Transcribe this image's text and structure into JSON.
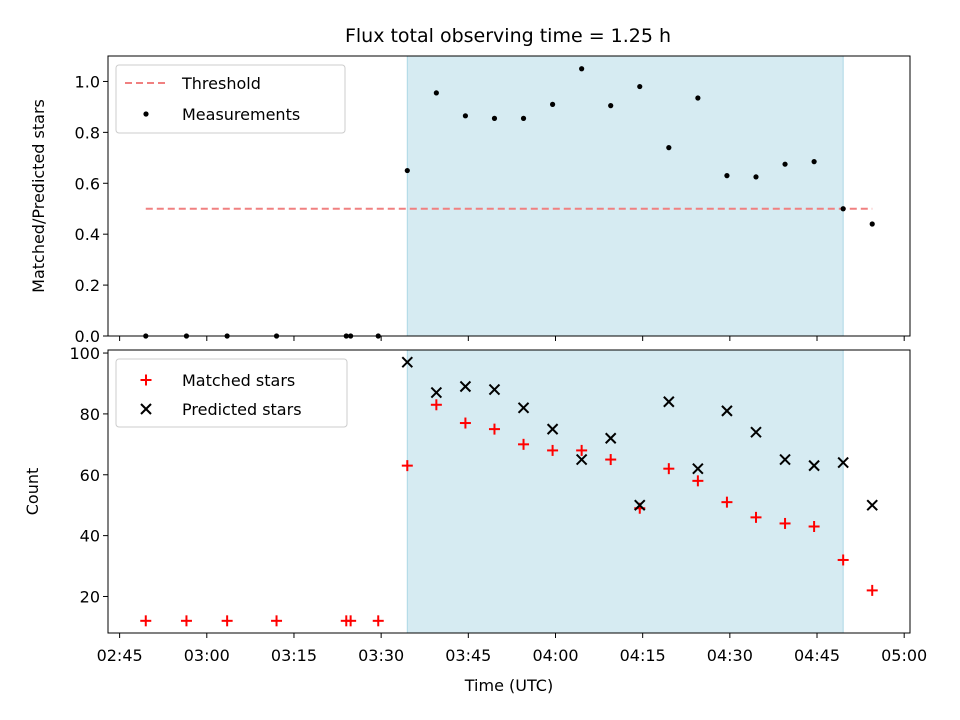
{
  "chart_data": [
    {
      "type": "scatter",
      "title": "Flux total observing time = 1.25 h",
      "xlabel": "",
      "ylabel": "Matched/Predicted stars",
      "xlim": [
        "02:43:00",
        "05:01:00"
      ],
      "ylim": [
        0,
        1.1
      ],
      "y_ticks": [
        "0.0",
        "0.2",
        "0.4",
        "0.6",
        "0.8",
        "1.0"
      ],
      "highlight_span": [
        "03:34:30",
        "04:49:30"
      ],
      "highlight_color": "#add8e6",
      "grid": false,
      "legend_position": "upper-left",
      "legend": [
        "Threshold",
        "Measurements"
      ],
      "threshold": {
        "name": "Threshold",
        "y": 0.5,
        "x_range": [
          "02:49:30",
          "04:54:30"
        ],
        "color": "#f08080"
      },
      "series": [
        {
          "name": "Measurements",
          "color": "#000000",
          "marker": "dot",
          "x": [
            "02:49:30",
            "02:56:30",
            "03:03:30",
            "03:12:00",
            "03:24:00",
            "03:24:45",
            "03:29:30",
            "03:34:30",
            "03:39:30",
            "03:44:30",
            "03:49:30",
            "03:54:30",
            "03:59:30",
            "04:04:30",
            "04:09:30",
            "04:14:30",
            "04:19:30",
            "04:24:30",
            "04:29:30",
            "04:34:30",
            "04:39:30",
            "04:44:30",
            "04:49:30",
            "04:54:30"
          ],
          "y": [
            0,
            0,
            0,
            0,
            0,
            0,
            0,
            0.65,
            0.955,
            0.865,
            0.855,
            0.855,
            0.91,
            1.05,
            0.905,
            0.98,
            0.74,
            0.935,
            0.63,
            0.625,
            0.675,
            0.685,
            0.5,
            0.44
          ]
        }
      ]
    },
    {
      "type": "scatter",
      "title": "",
      "xlabel": "Time (UTC)",
      "ylabel": "Count",
      "xlim": [
        "02:43:00",
        "05:01:00"
      ],
      "ylim": [
        8,
        101
      ],
      "x_ticks": [
        "02:45",
        "03:00",
        "03:15",
        "03:30",
        "03:45",
        "04:00",
        "04:15",
        "04:30",
        "04:45",
        "05:00"
      ],
      "y_ticks": [
        "20",
        "40",
        "60",
        "80",
        "100"
      ],
      "highlight_span": [
        "03:34:30",
        "04:49:30"
      ],
      "highlight_color": "#add8e6",
      "grid": false,
      "legend_position": "upper-left",
      "legend": [
        "Matched stars",
        "Predicted stars"
      ],
      "series": [
        {
          "name": "Matched stars",
          "color": "#ff0000",
          "marker": "plus",
          "x": [
            "02:49:30",
            "02:56:30",
            "03:03:30",
            "03:12:00",
            "03:24:00",
            "03:24:45",
            "03:29:30",
            "03:34:30",
            "03:39:30",
            "03:44:30",
            "03:49:30",
            "03:54:30",
            "03:59:30",
            "04:04:30",
            "04:09:30",
            "04:14:30",
            "04:19:30",
            "04:24:30",
            "04:29:30",
            "04:34:30",
            "04:39:30",
            "04:44:30",
            "04:49:30",
            "04:54:30"
          ],
          "y": [
            12,
            12,
            12,
            12,
            12,
            12,
            12,
            63,
            83,
            77,
            75,
            70,
            68,
            68,
            65,
            49,
            62,
            58,
            51,
            46,
            44,
            43,
            32,
            22
          ]
        },
        {
          "name": "Predicted stars",
          "color": "#000000",
          "marker": "x",
          "x": [
            "03:34:30",
            "03:39:30",
            "03:44:30",
            "03:49:30",
            "03:54:30",
            "03:59:30",
            "04:04:30",
            "04:09:30",
            "04:14:30",
            "04:19:30",
            "04:24:30",
            "04:29:30",
            "04:34:30",
            "04:39:30",
            "04:44:30",
            "04:49:30",
            "04:54:30"
          ],
          "y": [
            97,
            87,
            89,
            88,
            82,
            75,
            65,
            72,
            50,
            84,
            62,
            81,
            74,
            65,
            63,
            64,
            50
          ]
        }
      ]
    }
  ]
}
